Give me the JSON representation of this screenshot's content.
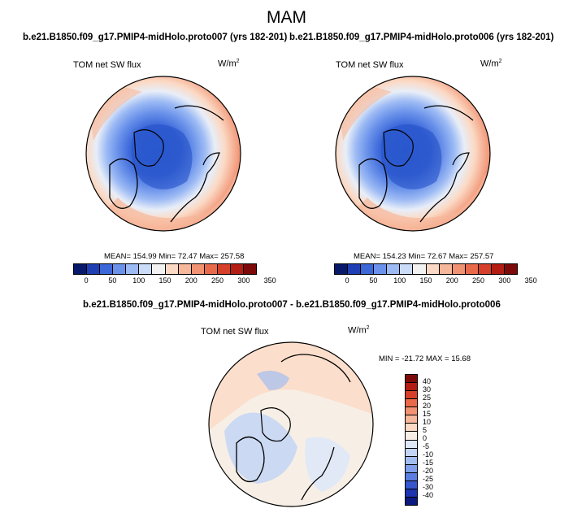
{
  "title": "MAM",
  "panels": [
    {
      "run": "b.e21.B1850.f09_g17.PMIP4-midHolo.proto007 (yrs 182-201)",
      "variable": "TOM net SW flux",
      "units_base": "W/m",
      "units_exp": "2",
      "stats_text": "MEAN= 154.99  Min=  72.47  Max= 257.58",
      "mean": 154.99,
      "min": 72.47,
      "max": 257.58
    },
    {
      "run": "b.e21.B1850.f09_g17.PMIP4-midHolo.proto006 (yrs 182-201)",
      "variable": "TOM net SW flux",
      "units_base": "W/m",
      "units_exp": "2",
      "stats_text": "MEAN= 154.23  Min=  72.67  Max= 257.57",
      "mean": 154.23,
      "min": 72.67,
      "max": 257.57
    }
  ],
  "diff": {
    "title": "b.e21.B1850.f09_g17.PMIP4-midHolo.proto007 - b.e21.B1850.f09_g17.PMIP4-midHolo.proto006",
    "variable": "TOM net SW flux",
    "units_base": "W/m",
    "units_exp": "2",
    "stats_text": "MIN = -21.72 MAX =  15.68",
    "min": -21.72,
    "max": 15.68
  },
  "abs_colorbar": {
    "colors": [
      "#08196b",
      "#1f3fb5",
      "#3b67d9",
      "#6a92ea",
      "#9cbaf4",
      "#cbdcf9",
      "#f2f2f2",
      "#fbd9c4",
      "#f6b79a",
      "#f19272",
      "#e96a4b",
      "#d6402a",
      "#b31d13",
      "#7d0a08"
    ],
    "labels": [
      "0",
      "50",
      "100",
      "150",
      "200",
      "250",
      "300",
      "350"
    ]
  },
  "diff_colorbar": {
    "colors": [
      "#7d0a08",
      "#b31d13",
      "#d6402a",
      "#e96a4b",
      "#f19272",
      "#f6b79a",
      "#fbd9c4",
      "#f7efe6",
      "#dfe8f7",
      "#c3d5f5",
      "#a2bdf1",
      "#7f9fea",
      "#5a7ee0",
      "#3658cf",
      "#1d35b0",
      "#0b1a80"
    ],
    "labels": [
      "40",
      "30",
      "25",
      "20",
      "15",
      "10",
      "5",
      "0",
      "-5",
      "-10",
      "-15",
      "-20",
      "-25",
      "-30",
      "-40"
    ]
  }
}
